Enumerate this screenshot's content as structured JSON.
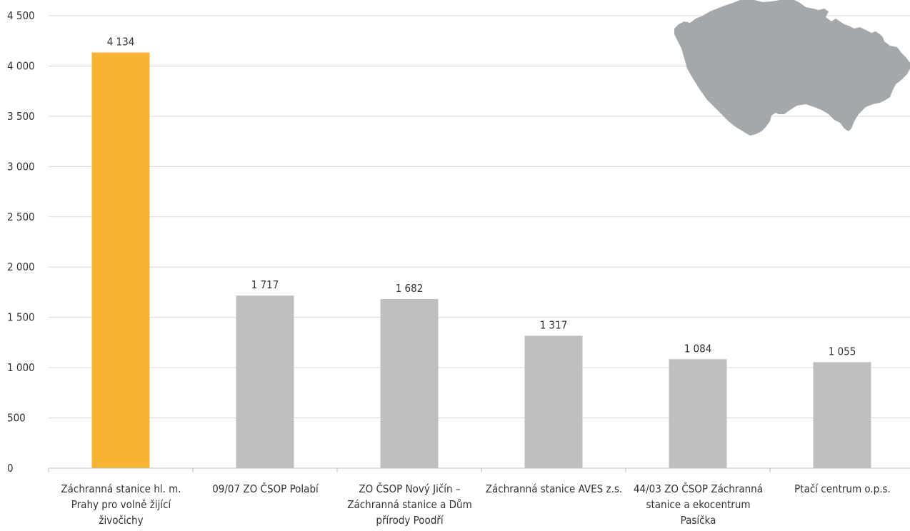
{
  "chart_data": {
    "type": "bar",
    "title": "",
    "xlabel": "",
    "ylabel": "",
    "ylim": [
      0,
      4500
    ],
    "yticks": [
      0,
      500,
      1000,
      1500,
      2000,
      2500,
      3000,
      3500,
      4000,
      4500
    ],
    "ytick_labels": [
      "0",
      "500",
      "1 000",
      "1 500",
      "2 000",
      "2 500",
      "3 000",
      "3 500",
      "4 000",
      "4 500"
    ],
    "grid": true,
    "categories": [
      "Záchranná stanice hl. m. Prahy pro volně žijící živočichy",
      "09/07 ZO ČSOP Polabí",
      "ZO ČSOP Nový Jičín – Záchranná stanice a Dům přírody Poodří",
      "Záchranná stanice AVES z.s.",
      "44/03 ZO ČSOP Záchranná stanice a ekocentrum Pasíčka",
      "Ptačí centrum o.p.s."
    ],
    "category_lines": [
      [
        "Záchranná stanice hl. m.",
        "Prahy pro volně žijící",
        "živočichy"
      ],
      [
        "09/07 ZO ČSOP Polabí"
      ],
      [
        "ZO ČSOP Nový Jičín –",
        "Záchranná stanice a Dům",
        "přírody Poodří"
      ],
      [
        "Záchranná stanice AVES z.s."
      ],
      [
        "44/03 ZO ČSOP Záchranná",
        "stanice a ekocentrum",
        "Pasíčka"
      ],
      [
        "Ptačí centrum o.p.s."
      ]
    ],
    "values": [
      4134,
      1717,
      1682,
      1317,
      1084,
      1055
    ],
    "value_labels": [
      "4 134",
      "1 717",
      "1 682",
      "1 317",
      "1 084",
      "1 055"
    ],
    "bar_colors": [
      "#F7B334",
      "#BFBFBF",
      "#BFBFBF",
      "#BFBFBF",
      "#BFBFBF",
      "#BFBFBF"
    ],
    "decoration": "czech-republic-map-silhouette",
    "decoration_color": "#A5A8AB"
  }
}
